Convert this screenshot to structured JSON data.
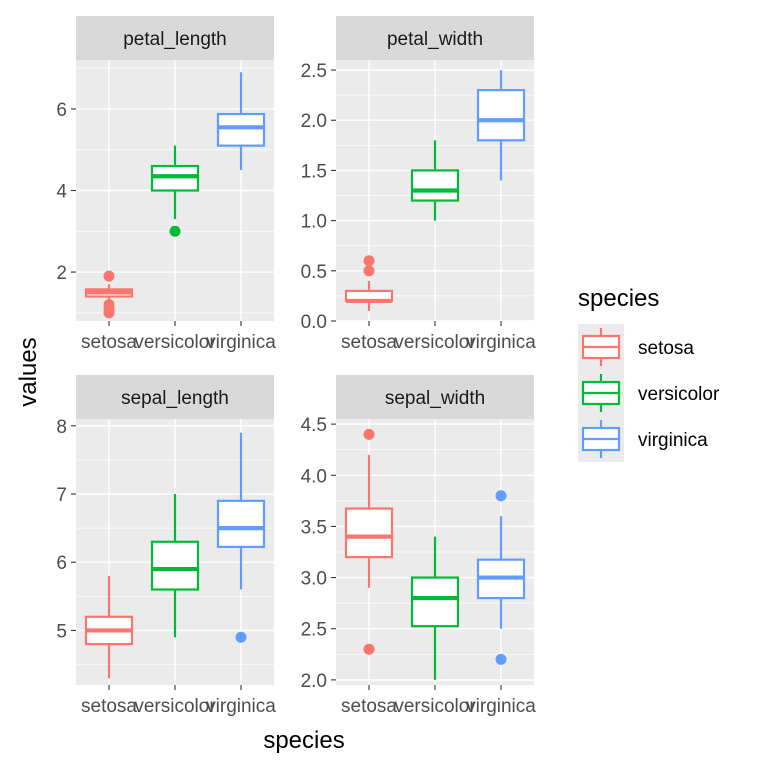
{
  "chart_data": {
    "type": "boxplot",
    "facet_by": "variable",
    "x_axis_label": "species",
    "y_axis_label": "values",
    "categories": [
      "setosa",
      "versicolor",
      "virginica"
    ],
    "colors": {
      "setosa": "#F8766D",
      "versicolor": "#00BA38",
      "virginica": "#619CFF"
    },
    "legend": {
      "title": "species",
      "position": "right",
      "entries": [
        "setosa",
        "versicolor",
        "virginica"
      ]
    },
    "panels": [
      {
        "title": "petal_length",
        "ylim": [
          0.8,
          7.2
        ],
        "yticks": [
          2,
          4,
          6
        ],
        "ytick_labels": [
          "2",
          "4",
          "6"
        ],
        "boxes": [
          {
            "species": "setosa",
            "min": 1.3,
            "q1": 1.4,
            "median": 1.5,
            "q3": 1.575,
            "max": 1.7,
            "outliers": [
              1.0,
              1.1,
              1.2,
              1.9
            ]
          },
          {
            "species": "versicolor",
            "min": 3.3,
            "q1": 4.0,
            "median": 4.35,
            "q3": 4.6,
            "max": 5.1,
            "outliers": [
              3.0
            ]
          },
          {
            "species": "virginica",
            "min": 4.5,
            "q1": 5.1,
            "median": 5.55,
            "q3": 5.875,
            "max": 6.9,
            "outliers": []
          }
        ]
      },
      {
        "title": "petal_width",
        "ylim": [
          0.0,
          2.6
        ],
        "yticks": [
          0.0,
          0.5,
          1.0,
          1.5,
          2.0,
          2.5
        ],
        "ytick_labels": [
          "0.0",
          "0.5",
          "1.0",
          "1.5",
          "2.0",
          "2.5"
        ],
        "boxes": [
          {
            "species": "setosa",
            "min": 0.1,
            "q1": 0.2,
            "median": 0.2,
            "q3": 0.3,
            "max": 0.4,
            "outliers": [
              0.5,
              0.6
            ]
          },
          {
            "species": "versicolor",
            "min": 1.0,
            "q1": 1.2,
            "median": 1.3,
            "q3": 1.5,
            "max": 1.8,
            "outliers": []
          },
          {
            "species": "virginica",
            "min": 1.4,
            "q1": 1.8,
            "median": 2.0,
            "q3": 2.3,
            "max": 2.5,
            "outliers": []
          }
        ]
      },
      {
        "title": "sepal_length",
        "ylim": [
          4.2,
          8.1
        ],
        "yticks": [
          5,
          6,
          7,
          8
        ],
        "ytick_labels": [
          "5",
          "6",
          "7",
          "8"
        ],
        "boxes": [
          {
            "species": "setosa",
            "min": 4.3,
            "q1": 4.8,
            "median": 5.0,
            "q3": 5.2,
            "max": 5.8,
            "outliers": []
          },
          {
            "species": "versicolor",
            "min": 4.9,
            "q1": 5.6,
            "median": 5.9,
            "q3": 6.3,
            "max": 7.0,
            "outliers": []
          },
          {
            "species": "virginica",
            "min": 5.6,
            "q1": 6.225,
            "median": 6.5,
            "q3": 6.9,
            "max": 7.9,
            "outliers": [
              4.9
            ]
          }
        ]
      },
      {
        "title": "sepal_width",
        "ylim": [
          1.95,
          4.55
        ],
        "yticks": [
          2.0,
          2.5,
          3.0,
          3.5,
          4.0,
          4.5
        ],
        "ytick_labels": [
          "2.0",
          "2.5",
          "3.0",
          "3.5",
          "4.0",
          "4.5"
        ],
        "boxes": [
          {
            "species": "setosa",
            "min": 2.9,
            "q1": 3.2,
            "median": 3.4,
            "q3": 3.675,
            "max": 4.2,
            "outliers": [
              2.3,
              4.4
            ]
          },
          {
            "species": "versicolor",
            "min": 2.0,
            "q1": 2.525,
            "median": 2.8,
            "q3": 3.0,
            "max": 3.4,
            "outliers": []
          },
          {
            "species": "virginica",
            "min": 2.5,
            "q1": 2.8,
            "median": 3.0,
            "q3": 3.175,
            "max": 3.6,
            "outliers": [
              2.2,
              3.8
            ]
          }
        ]
      }
    ]
  }
}
